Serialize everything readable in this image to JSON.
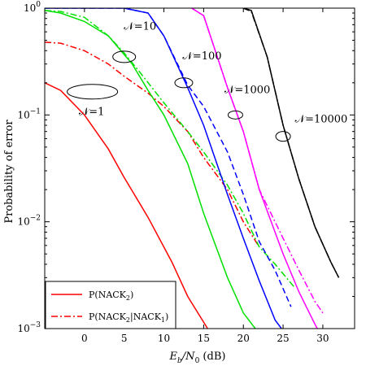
{
  "chart_data": {
    "type": "line",
    "title": "",
    "xlabel": "E_b/N_0 (dB)",
    "ylabel": "Probability of error",
    "xlim": [
      -5,
      34
    ],
    "ylim": [
      0.001,
      1
    ],
    "yscale": "log",
    "grid": false,
    "x_ticks": [
      0,
      5,
      10,
      15,
      20,
      25,
      30
    ],
    "x_tick_labels": [
      "0",
      "5",
      "10",
      "15",
      "20",
      "25",
      "30"
    ],
    "y_ticks": [
      0.001,
      0.01,
      0.1,
      1
    ],
    "y_tick_labels": [
      [
        "10",
        "−3"
      ],
      [
        "10",
        "−2"
      ],
      [
        "10",
        "−1"
      ],
      [
        "10",
        "0"
      ]
    ],
    "legend": {
      "placement": "bottom-left",
      "entries": [
        {
          "text_main": "P(NACK",
          "sub": "2",
          "text_end": ")",
          "style": "solid",
          "color": "#ff0000"
        },
        {
          "text_main": "P(NACK",
          "sub": "2",
          "text_mid": "|NACK",
          "sub2": "1",
          "text_end": ")",
          "style": "dashdot",
          "color": "#ff0000"
        }
      ]
    },
    "annotations": [
      {
        "text": "𝒩=1",
        "ellipse_x": 1,
        "ellipse_y": 0.165,
        "text_x": 0.9,
        "text_y": 0.1
      },
      {
        "text": "𝒩=10",
        "ellipse_x": 5,
        "ellipse_y": 0.35,
        "text_x": 7,
        "text_y": 0.63
      },
      {
        "text": "𝒩=100",
        "ellipse_x": 12.5,
        "ellipse_y": 0.2,
        "text_x": 14.8,
        "text_y": 0.33
      },
      {
        "text": "𝒩=1000",
        "ellipse_x": 19,
        "ellipse_y": 0.1,
        "text_x": 20.5,
        "text_y": 0.16
      },
      {
        "text": "𝒩=10000",
        "ellipse_x": 25,
        "ellipse_y": 0.063,
        "text_x": 29.8,
        "text_y": 0.085
      }
    ],
    "series": [
      {
        "group": "N=1",
        "kind": "P(NACK2)",
        "color": "#ff0000",
        "style": "solid",
        "x": [
          -5,
          -3,
          0,
          3,
          5,
          8,
          11,
          13,
          15.5
        ],
        "y": [
          0.2,
          0.17,
          0.1,
          0.048,
          0.026,
          0.011,
          0.0042,
          0.002,
          0.001
        ]
      },
      {
        "group": "N=1",
        "kind": "P(NACK2|NACK1)",
        "color": "#ff0000",
        "style": "dashdot",
        "x": [
          -5,
          -3,
          0,
          3,
          5,
          8,
          10,
          13,
          15,
          18,
          20,
          22
        ],
        "y": [
          0.48,
          0.47,
          0.4,
          0.3,
          0.23,
          0.16,
          0.12,
          0.07,
          0.04,
          0.02,
          0.01,
          0.0058
        ]
      },
      {
        "group": "N=10",
        "kind": "P(NACK2)",
        "color": "#00e000",
        "style": "solid",
        "x": [
          -5,
          -3,
          0,
          3,
          6,
          8,
          10,
          13,
          15,
          18,
          20,
          21.5
        ],
        "y": [
          0.95,
          0.9,
          0.75,
          0.55,
          0.3,
          0.17,
          0.1,
          0.035,
          0.012,
          0.003,
          0.0014,
          0.001
        ]
      },
      {
        "group": "N=10",
        "kind": "P(NACK2|NACK1)",
        "color": "#00e000",
        "style": "dashdot",
        "x": [
          -5,
          -3,
          0,
          3,
          5,
          7,
          10,
          13,
          15,
          18,
          20,
          22,
          24,
          26.5
        ],
        "y": [
          0.95,
          0.93,
          0.82,
          0.55,
          0.38,
          0.25,
          0.13,
          0.07,
          0.045,
          0.022,
          0.012,
          0.0058,
          0.004,
          0.0024
        ]
      },
      {
        "group": "N=100",
        "kind": "P(NACK2)",
        "color": "#0000ff",
        "style": "solid",
        "x": [
          -5,
          0,
          5,
          8,
          10,
          13,
          15,
          18,
          20,
          22,
          24,
          24.8
        ],
        "y": [
          1,
          1,
          1,
          0.9,
          0.55,
          0.18,
          0.08,
          0.018,
          0.007,
          0.0028,
          0.0012,
          0.001
        ]
      },
      {
        "group": "N=100",
        "kind": "P(NACK2|NACK1)",
        "color": "#0000ff",
        "style": "dashed",
        "x": [
          -5,
          0,
          5,
          8,
          10,
          13,
          15,
          18,
          20,
          22,
          24,
          26
        ],
        "y": [
          1,
          1,
          1,
          0.9,
          0.55,
          0.19,
          0.12,
          0.045,
          0.018,
          0.0065,
          0.0035,
          0.0016
        ]
      },
      {
        "group": "N=1000",
        "kind": "P(NACK2)",
        "color": "#ff00ff",
        "style": "solid",
        "x": [
          13.5,
          15,
          18,
          20,
          22,
          25,
          27,
          29,
          29.3
        ],
        "y": [
          1,
          0.85,
          0.18,
          0.07,
          0.02,
          0.005,
          0.0022,
          0.0011,
          0.001
        ]
      },
      {
        "group": "N=1000",
        "kind": "P(NACK2|NACK1)",
        "color": "#ff00ff",
        "style": "dashdot",
        "x": [
          13.5,
          15,
          18,
          20,
          22,
          25,
          27,
          29,
          30
        ],
        "y": [
          1,
          0.85,
          0.18,
          0.07,
          0.02,
          0.007,
          0.0035,
          0.0018,
          0.0014
        ]
      },
      {
        "group": "N=10000",
        "kind": "P(NACK2)",
        "color": "#000000",
        "style": "solid",
        "x": [
          20,
          21,
          23,
          25,
          27,
          29,
          31,
          32
        ],
        "y": [
          1,
          0.95,
          0.35,
          0.08,
          0.025,
          0.009,
          0.0042,
          0.003
        ]
      },
      {
        "group": "N=10000",
        "kind": "P(NACK2|NACK1)",
        "color": "#000000",
        "style": "dashdot",
        "x": [
          20,
          21,
          23,
          25,
          27,
          29,
          31,
          32
        ],
        "y": [
          1,
          0.93,
          0.35,
          0.08,
          0.025,
          0.009,
          0.0042,
          0.003
        ]
      }
    ]
  }
}
